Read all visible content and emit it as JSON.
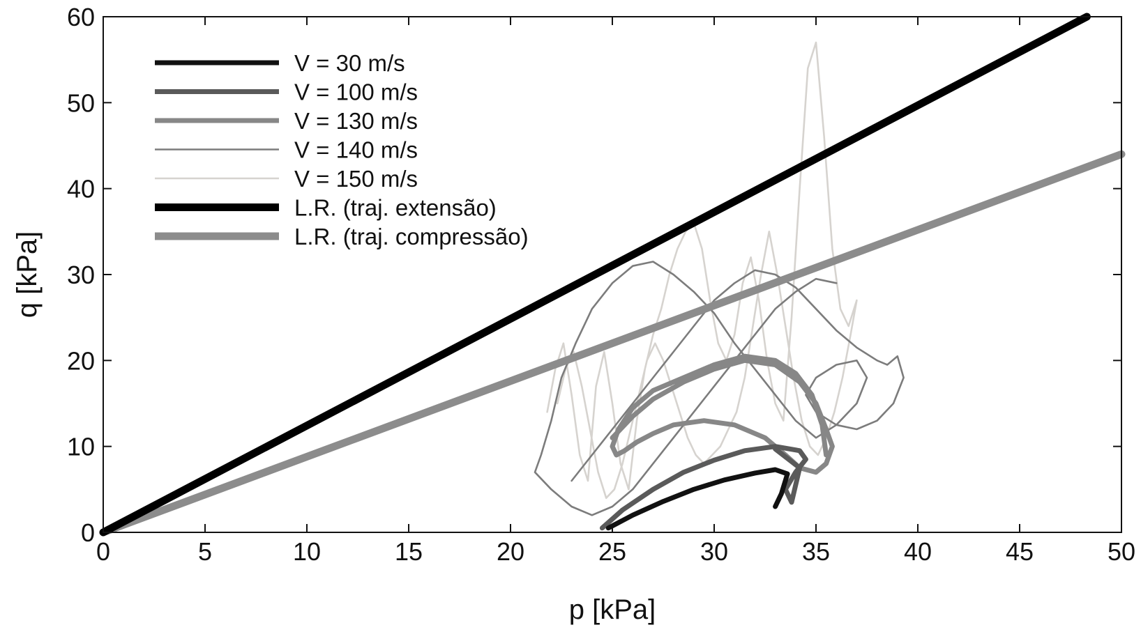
{
  "chart_data": {
    "type": "line",
    "title": "",
    "xlabel": "p [kPa]",
    "ylabel": "q [kPa]",
    "xlim": [
      0,
      50
    ],
    "ylim": [
      0,
      60
    ],
    "xticks": [
      "0",
      "5",
      "10",
      "15",
      "20",
      "25",
      "30",
      "35",
      "40",
      "45",
      "50"
    ],
    "yticks": [
      "0",
      "10",
      "20",
      "30",
      "40",
      "50",
      "60"
    ],
    "grid": false,
    "legend_position": "top-left",
    "series": [
      {
        "name": "V = 30 m/s",
        "color": "#111111",
        "style": "medium",
        "x": [
          24.8,
          26,
          27.5,
          29,
          30.5,
          32,
          33,
          33.6,
          33.3,
          33.0
        ],
        "y": [
          0.5,
          2.0,
          3.6,
          5.0,
          6.1,
          6.9,
          7.3,
          6.8,
          4.5,
          3.0
        ]
      },
      {
        "name": "V = 100 m/s",
        "color": "#5a5a5a",
        "style": "medium",
        "x": [
          24.5,
          25.5,
          27,
          28.5,
          30,
          31.5,
          33,
          34.2,
          34.5,
          34.0,
          33.5,
          33.8,
          34.2,
          33.0
        ],
        "y": [
          0.5,
          2.6,
          5.0,
          7.0,
          8.4,
          9.5,
          10.0,
          9.5,
          8.5,
          7.0,
          5.0,
          3.5,
          7.5,
          9.7
        ]
      },
      {
        "name": "V = 130 m/s",
        "color": "#878787",
        "style": "medium",
        "x": [
          25,
          26,
          27,
          28.5,
          30,
          31.5,
          33,
          34.2,
          35,
          35.5,
          35.8,
          35.5,
          35,
          34.2,
          33.5,
          32.5,
          31,
          29.5,
          28,
          27,
          26.2,
          25.6,
          25.2,
          25,
          25.3,
          26,
          27,
          28.5,
          30,
          31.5,
          33,
          34,
          34.8,
          35.3,
          35.5
        ],
        "y": [
          11,
          13.5,
          15.5,
          17.5,
          19,
          20,
          19.5,
          17.5,
          15,
          12,
          10,
          8,
          7,
          7.5,
          9,
          11,
          12.5,
          13,
          12.5,
          11.5,
          10.5,
          9.5,
          9,
          10,
          12,
          14.5,
          16.5,
          18,
          19.5,
          20.5,
          20,
          18.5,
          16,
          12.5,
          9
        ]
      },
      {
        "name": "V = 140 m/s",
        "color": "#7c7c7c",
        "style": "thin",
        "x": [
          23,
          24,
          25,
          26,
          27,
          28,
          29,
          30,
          31,
          32,
          33,
          34,
          35,
          36,
          37,
          38,
          38.5,
          39,
          39.3,
          38.8,
          38,
          37,
          36,
          35,
          34.5,
          35,
          36,
          37,
          37.5,
          37,
          36,
          35,
          34,
          33,
          32,
          31,
          30,
          29,
          28,
          27,
          26,
          25,
          24,
          23.2,
          22.5,
          22,
          21.5,
          21.2,
          22,
          23,
          24,
          25,
          26,
          27,
          28,
          29,
          30,
          31,
          32,
          33,
          34,
          35,
          36
        ],
        "y": [
          6,
          9,
          12,
          15,
          18,
          21,
          24,
          27,
          29,
          30.5,
          30,
          28.5,
          26,
          23.5,
          21.5,
          20,
          19.5,
          20.5,
          18,
          15,
          13,
          12,
          12.5,
          14,
          16,
          18,
          19.5,
          20,
          18,
          15,
          12.5,
          11,
          13,
          16,
          19,
          22,
          25.5,
          28,
          30,
          31.5,
          31,
          29,
          26,
          22,
          18,
          13,
          9,
          7,
          5,
          3,
          2,
          3,
          5,
          8,
          11,
          14,
          17,
          20,
          23,
          26,
          28,
          29.5,
          29
        ]
      },
      {
        "name": "V = 150 m/s",
        "color": "#d6d3cf",
        "style": "thin",
        "x": [
          21.8,
          22.2,
          22.6,
          23,
          23.4,
          23.8,
          24.2,
          24.6,
          25,
          25.4,
          25.8,
          26.2,
          26.6,
          27,
          27.4,
          27.8,
          28.2,
          28.6,
          29,
          29.4,
          29.8,
          30.2,
          30.6,
          31,
          31.4,
          31.8,
          32.2,
          32.6,
          33,
          33.4,
          33.8,
          34.2,
          34.6,
          35,
          35.4,
          35.8,
          36.2,
          36.6,
          37,
          36.7,
          36.3,
          35.9,
          35.5,
          35.1,
          34.7,
          34.3,
          33.9,
          33.5,
          33.1,
          32.7,
          32.3,
          31.9,
          31.5,
          31.1,
          30.7,
          30.3,
          29.9,
          29.5,
          29.1,
          28.7,
          28.3,
          27.9,
          27.5,
          27.1,
          26.7,
          26.3,
          25.9,
          25.5,
          25.1,
          24.7,
          24.3,
          23.9,
          23.5,
          23.1,
          22.7,
          22.3
        ],
        "y": [
          14,
          19,
          22,
          16,
          9,
          6,
          17,
          21,
          15,
          8,
          5,
          13,
          19,
          23,
          26,
          30,
          33,
          35,
          36,
          33,
          27,
          22,
          20,
          23,
          29,
          32,
          27,
          20,
          15,
          13,
          25,
          40,
          54,
          57,
          46,
          33,
          26,
          24,
          27,
          23,
          18,
          14,
          11,
          9,
          10,
          13,
          18,
          24,
          30,
          35,
          30,
          24,
          18,
          14,
          12,
          10,
          9,
          8,
          9,
          11,
          14,
          17,
          20,
          22,
          20,
          16,
          12,
          8,
          5,
          4,
          7,
          12,
          17,
          21,
          19,
          15
        ]
      },
      {
        "name": "L.R. (traj. extensão)",
        "color": "#000000",
        "style": "thick",
        "x": [
          0,
          48.3
        ],
        "y": [
          0,
          60
        ]
      },
      {
        "name": "L.R. (traj. compressão)",
        "color": "#8c8c8c",
        "style": "thick",
        "x": [
          0,
          50
        ],
        "y": [
          0,
          44
        ]
      }
    ]
  }
}
